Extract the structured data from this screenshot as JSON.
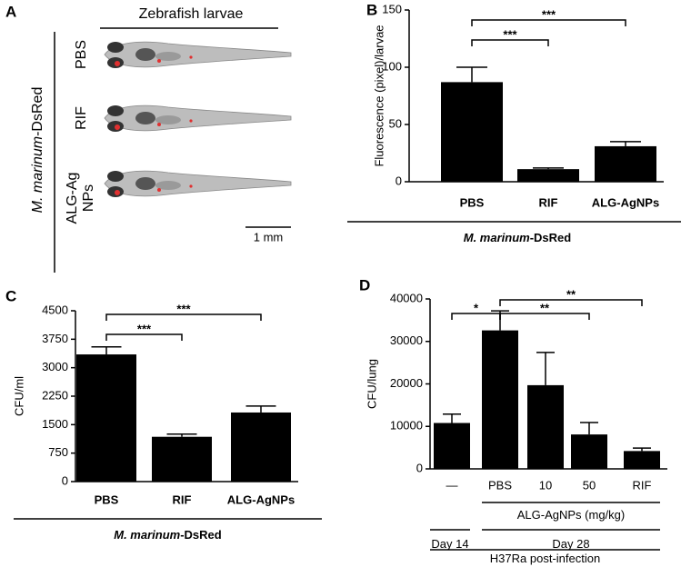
{
  "panel_a": {
    "label": "A",
    "title": "Zebrafish larvae",
    "side_label": {
      "italic": "M. marinum",
      "text": "-DsRed"
    },
    "rows": [
      [
        "PBS"
      ],
      [
        "RIF"
      ],
      [
        "ALG-Ag",
        "NPs"
      ]
    ],
    "scale_bar": "1 mm"
  },
  "chart_data": [
    {
      "type": "bar",
      "label": "B",
      "ylabel": "Fluorescence (pixel)/larvae",
      "color": "#000000",
      "categories": [
        "PBS",
        "RIF",
        "ALG-AgNPs"
      ],
      "values": [
        87,
        11,
        31
      ],
      "errors": [
        13,
        1,
        4
      ],
      "ylim": [
        0,
        150
      ],
      "yticks": [
        0,
        50,
        100,
        150
      ],
      "brackets": [
        {
          "from": "PBS",
          "to": "ALG-AgNPs",
          "text": "***"
        },
        {
          "from": "PBS",
          "to": "RIF",
          "text": "***"
        }
      ],
      "groups": [
        {
          "from": "PBS",
          "to": "ALG-AgNPs",
          "italic": "M. marinum",
          "text": "-DsRed"
        }
      ]
    },
    {
      "type": "bar",
      "label": "C",
      "ylabel": "CFU/ml",
      "color": "#000000",
      "categories": [
        "PBS",
        "RIF",
        "ALG-AgNPs"
      ],
      "values": [
        3350,
        1180,
        1820
      ],
      "errors": [
        200,
        70,
        170
      ],
      "ylim": [
        0,
        4500
      ],
      "yticks": [
        0,
        750,
        1500,
        2250,
        3000,
        3750,
        4500
      ],
      "brackets": [
        {
          "from": "PBS",
          "to": "ALG-AgNPs",
          "text": "***"
        },
        {
          "from": "PBS",
          "to": "RIF",
          "text": "***"
        }
      ],
      "groups": [
        {
          "from": "PBS",
          "to": "ALG-AgNPs",
          "italic": "M. marinum",
          "text": "-DsRed"
        }
      ]
    },
    {
      "type": "bar",
      "label": "D",
      "ylabel": "CFU/lung",
      "color": "#000000",
      "categories": [
        "—",
        "PBS",
        "10",
        "50",
        "RIF"
      ],
      "values": [
        10800,
        32600,
        19700,
        8100,
        4200
      ],
      "errors": [
        2100,
        4600,
        7700,
        2800,
        700
      ],
      "ylim": [
        0,
        40000
      ],
      "yticks": [
        0,
        10000,
        20000,
        30000,
        40000
      ],
      "brackets": [
        {
          "from": "PBS",
          "to": "RIF",
          "text": "**"
        },
        {
          "from": "—",
          "to": "PBS",
          "text": "*"
        },
        {
          "from": "PBS",
          "to": "50",
          "text": "**"
        }
      ],
      "groups": [
        {
          "from": "PBS",
          "to": "RIF",
          "text": "ALG-AgNPs (mg/kg)"
        },
        {
          "from": "—",
          "to": "—",
          "text": "Day 14"
        },
        {
          "from": "PBS",
          "to": "RIF",
          "text": "Day 28"
        },
        {
          "from": "—",
          "to": "RIF",
          "text": "H37Ra post-infection"
        }
      ]
    }
  ]
}
